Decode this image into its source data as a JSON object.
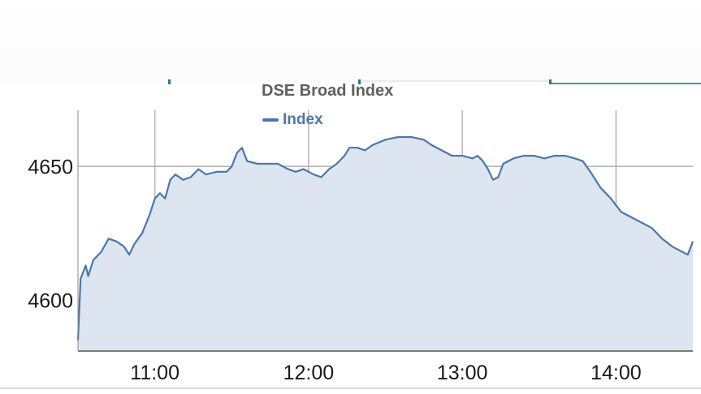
{
  "chart_data": {
    "type": "area",
    "title": "DSE Broad Index",
    "xlabel": "",
    "ylabel": "",
    "legend": {
      "position": "top-center",
      "entries": [
        "Index"
      ]
    },
    "grid": true,
    "xlim": [
      "10:30",
      "14:30"
    ],
    "ylim": [
      4581,
      4671
    ],
    "xticks": [
      "11:00",
      "12:00",
      "13:00",
      "14:00"
    ],
    "yticks": [
      4600,
      4650
    ],
    "series": [
      {
        "name": "Index",
        "color": "#4a78ad",
        "fill": "#dce5f0",
        "points": [
          [
            "10:30",
            4585
          ],
          [
            "10:31",
            4608
          ],
          [
            "10:33",
            4613
          ],
          [
            "10:34",
            4609
          ],
          [
            "10:36",
            4615
          ],
          [
            "10:39",
            4618
          ],
          [
            "10:42",
            4623
          ],
          [
            "10:45",
            4622
          ],
          [
            "10:48",
            4620
          ],
          [
            "10:50",
            4617
          ],
          [
            "10:52",
            4621
          ],
          [
            "10:55",
            4625
          ],
          [
            "10:58",
            4632
          ],
          [
            "11:00",
            4638
          ],
          [
            "11:02",
            4640
          ],
          [
            "11:04",
            4638
          ],
          [
            "11:06",
            4645
          ],
          [
            "11:08",
            4647
          ],
          [
            "11:11",
            4645
          ],
          [
            "11:14",
            4646
          ],
          [
            "11:17",
            4649
          ],
          [
            "11:20",
            4647
          ],
          [
            "11:24",
            4648
          ],
          [
            "11:28",
            4648
          ],
          [
            "11:30",
            4650
          ],
          [
            "11:32",
            4655
          ],
          [
            "11:34",
            4657
          ],
          [
            "11:36",
            4652
          ],
          [
            "11:40",
            4651
          ],
          [
            "11:44",
            4651
          ],
          [
            "11:48",
            4651
          ],
          [
            "11:52",
            4649
          ],
          [
            "11:55",
            4648
          ],
          [
            "11:58",
            4649
          ],
          [
            "12:02",
            4647
          ],
          [
            "12:05",
            4646
          ],
          [
            "12:08",
            4649
          ],
          [
            "12:11",
            4651
          ],
          [
            "12:14",
            4654
          ],
          [
            "12:16",
            4657
          ],
          [
            "12:19",
            4657
          ],
          [
            "12:22",
            4656
          ],
          [
            "12:25",
            4658
          ],
          [
            "12:30",
            4660
          ],
          [
            "12:35",
            4661
          ],
          [
            "12:40",
            4661
          ],
          [
            "12:45",
            4660
          ],
          [
            "12:48",
            4658
          ],
          [
            "12:52",
            4656
          ],
          [
            "12:56",
            4654
          ],
          [
            "13:00",
            4654
          ],
          [
            "13:04",
            4653
          ],
          [
            "13:06",
            4654
          ],
          [
            "13:08",
            4652
          ],
          [
            "13:10",
            4649
          ],
          [
            "13:12",
            4645
          ],
          [
            "13:14",
            4646
          ],
          [
            "13:16",
            4651
          ],
          [
            "13:20",
            4653
          ],
          [
            "13:24",
            4654
          ],
          [
            "13:28",
            4654
          ],
          [
            "13:32",
            4653
          ],
          [
            "13:36",
            4654
          ],
          [
            "13:40",
            4654
          ],
          [
            "13:44",
            4653
          ],
          [
            "13:47",
            4652
          ],
          [
            "13:50",
            4648
          ],
          [
            "13:54",
            4642
          ],
          [
            "13:58",
            4638
          ],
          [
            "14:02",
            4633
          ],
          [
            "14:06",
            4631
          ],
          [
            "14:10",
            4629
          ],
          [
            "14:14",
            4627
          ],
          [
            "14:18",
            4623
          ],
          [
            "14:22",
            4620
          ],
          [
            "14:26",
            4618
          ],
          [
            "14:28",
            4617
          ],
          [
            "14:30",
            4622
          ]
        ]
      }
    ]
  }
}
